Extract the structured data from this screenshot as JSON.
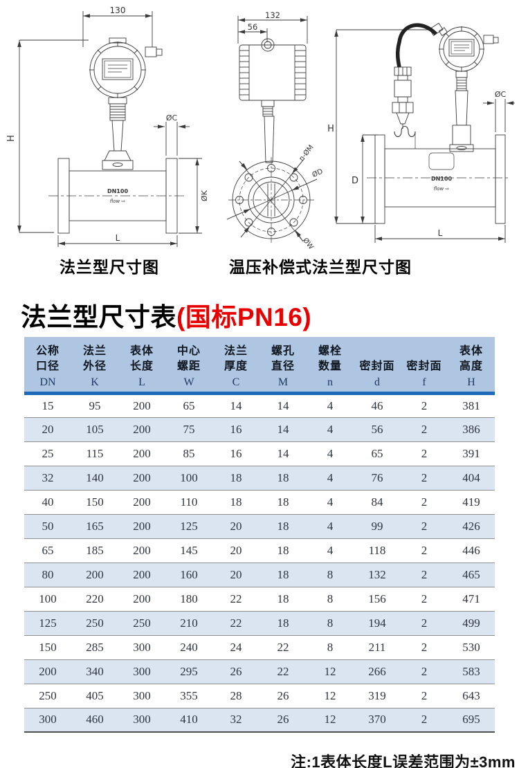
{
  "diagrams": {
    "left": {
      "caption": "法兰型尺寸图",
      "dim_width": "130",
      "dim_height": "H",
      "dim_flange_thickness": "ØC",
      "dim_flange_od": "ØK",
      "dim_length": "L",
      "body_label": "DN100",
      "flow_label": "flow ⇨"
    },
    "middle": {
      "dim_width": "132",
      "dim_neck": "56",
      "dim_bolt_holes": "n-ØM",
      "dim_seal_face": "ØD",
      "dim_bolt_circle": "ØW"
    },
    "right": {
      "caption": "温压补偿式法兰型尺寸图",
      "dim_height": "H",
      "dim_body_od": "D",
      "dim_flange_thickness": "ØC",
      "dim_length": "L",
      "body_label": "DN100",
      "flow_label": "flow ⇨"
    }
  },
  "title": {
    "main": "法兰型尺寸表",
    "suffix": "(国标PN16)"
  },
  "note": "注:1表体长度L误差范围为±3mm",
  "colors": {
    "header_bg": "#aec6e1",
    "header_rule": "#1e6ab8",
    "alt_row_bg": "#dbe5f2",
    "title_red": "#e80000"
  },
  "chart_data": {
    "type": "table",
    "title": "法兰型尺寸表(国标PN16)",
    "columns": [
      {
        "name_lines": [
          "公称",
          "口径"
        ],
        "symbol": "DN"
      },
      {
        "name_lines": [
          "法兰",
          "外径"
        ],
        "symbol": "K"
      },
      {
        "name_lines": [
          "表体",
          "长度"
        ],
        "symbol": "L"
      },
      {
        "name_lines": [
          "中心",
          "螺距"
        ],
        "symbol": "W"
      },
      {
        "name_lines": [
          "法兰",
          "厚度"
        ],
        "symbol": "C"
      },
      {
        "name_lines": [
          "螺孔",
          "直径"
        ],
        "symbol": "M"
      },
      {
        "name_lines": [
          "螺栓",
          "数量"
        ],
        "symbol": "n"
      },
      {
        "name_lines": [
          "",
          "密封面"
        ],
        "symbol": "d"
      },
      {
        "name_lines": [
          "",
          "密封面"
        ],
        "symbol": "f"
      },
      {
        "name_lines": [
          "表体",
          "高度"
        ],
        "symbol": "H"
      }
    ],
    "rows": [
      [
        15,
        95,
        200,
        65,
        14,
        14,
        4,
        46,
        2,
        381
      ],
      [
        20,
        105,
        200,
        75,
        16,
        14,
        4,
        56,
        2,
        386
      ],
      [
        25,
        115,
        200,
        85,
        16,
        14,
        4,
        65,
        2,
        391
      ],
      [
        32,
        140,
        200,
        100,
        18,
        18,
        4,
        76,
        2,
        404
      ],
      [
        40,
        150,
        200,
        110,
        18,
        18,
        4,
        84,
        2,
        419
      ],
      [
        50,
        165,
        200,
        125,
        20,
        18,
        4,
        99,
        2,
        426
      ],
      [
        65,
        185,
        200,
        145,
        20,
        18,
        4,
        118,
        2,
        446
      ],
      [
        80,
        200,
        200,
        160,
        20,
        18,
        8,
        132,
        2,
        465
      ],
      [
        100,
        220,
        200,
        180,
        22,
        18,
        8,
        156,
        2,
        471
      ],
      [
        125,
        250,
        250,
        210,
        22,
        18,
        8,
        194,
        2,
        499
      ],
      [
        150,
        285,
        300,
        240,
        24,
        22,
        8,
        211,
        2,
        530
      ],
      [
        200,
        340,
        300,
        295,
        26,
        22,
        12,
        266,
        2,
        583
      ],
      [
        250,
        405,
        300,
        355,
        28,
        26,
        12,
        319,
        2,
        643
      ],
      [
        300,
        460,
        300,
        410,
        32,
        26,
        12,
        370,
        2,
        695
      ]
    ]
  }
}
